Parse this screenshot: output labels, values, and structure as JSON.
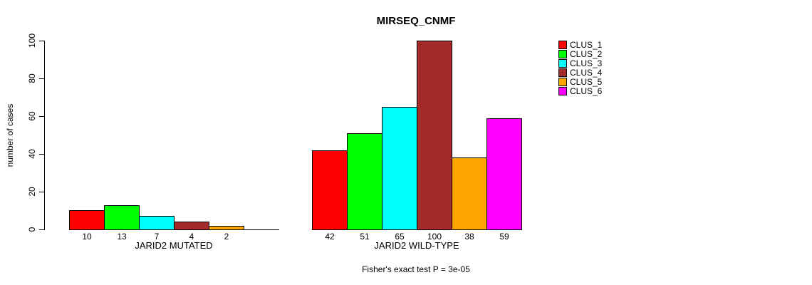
{
  "chart_data": {
    "type": "bar",
    "title": "MIRSEQ_CNMF",
    "ylabel": "number of cases",
    "ylim": [
      0,
      100
    ],
    "yticks": [
      0,
      20,
      40,
      60,
      80,
      100
    ],
    "grid": false,
    "legend_position": "right",
    "series_names": [
      "CLUS_1",
      "CLUS_2",
      "CLUS_3",
      "CLUS_4",
      "CLUS_5",
      "CLUS_6"
    ],
    "series_colors": [
      "#FF0000",
      "#00FF00",
      "#00FFFF",
      "#A52A2A",
      "#FFA500",
      "#FF00FF"
    ],
    "groups": [
      {
        "label": "JARID2 MUTATED",
        "values": [
          10,
          13,
          7,
          4,
          2,
          0
        ],
        "bar_labels": [
          "10",
          "13",
          "7",
          "4",
          "2",
          ""
        ]
      },
      {
        "label": "JARID2 WILD-TYPE",
        "values": [
          42,
          51,
          65,
          100,
          38,
          59
        ],
        "bar_labels": [
          "42",
          "51",
          "65",
          "100",
          "38",
          "59"
        ]
      }
    ],
    "annotation": "Fisher's exact test P = 3e-05"
  }
}
